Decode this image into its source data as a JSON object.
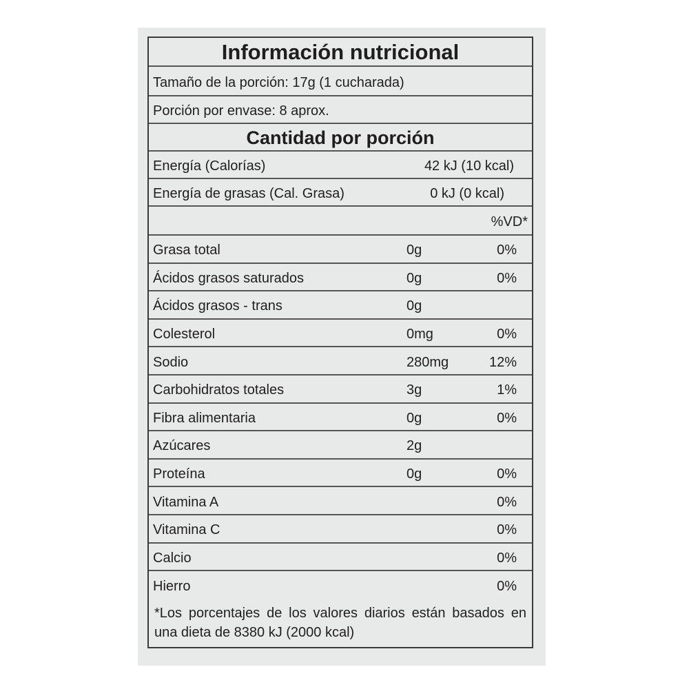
{
  "title": "Información nutricional",
  "serving_size": "Tamaño de la porción: 17g (1 cucharada)",
  "servings_per_container": "Porción por envase: 8 aprox.",
  "amount_per_serving": "Cantidad por porción",
  "energy": {
    "label": "Energía (Calorías)",
    "value": "42 kJ (10 kcal)"
  },
  "energy_fat": {
    "label": "Energía de grasas (Cal. Grasa)",
    "value": "0 kJ (0 kcal)"
  },
  "dv_header": "%VD*",
  "nutrients": [
    {
      "label": "Grasa total",
      "amount": "0g",
      "dv": "0%"
    },
    {
      "label": "Ácidos grasos saturados",
      "amount": "0g",
      "dv": "0%"
    },
    {
      "label": "Ácidos grasos - trans",
      "amount": "0g",
      "dv": ""
    },
    {
      "label": "Colesterol",
      "amount": "0mg",
      "dv": "0%"
    },
    {
      "label": "Sodio",
      "amount": "280mg",
      "dv": "12%"
    },
    {
      "label": "Carbohidratos totales",
      "amount": "3g",
      "dv": "1%"
    },
    {
      "label": "Fibra alimentaria",
      "amount": "0g",
      "dv": "0%"
    },
    {
      "label": "Azúcares",
      "amount": "2g",
      "dv": ""
    },
    {
      "label": "Proteína",
      "amount": "0g",
      "dv": "0%"
    },
    {
      "label": "Vitamina A",
      "amount": "",
      "dv": "0%"
    },
    {
      "label": "Vitamina C",
      "amount": "",
      "dv": "0%"
    },
    {
      "label": "Calcio",
      "amount": "",
      "dv": "0%"
    },
    {
      "label": "Hierro",
      "amount": "",
      "dv": "0%"
    }
  ],
  "footnote": "*Los porcentajes de los valores diarios están basados en una dieta de 8380 kJ (2000 kcal)"
}
